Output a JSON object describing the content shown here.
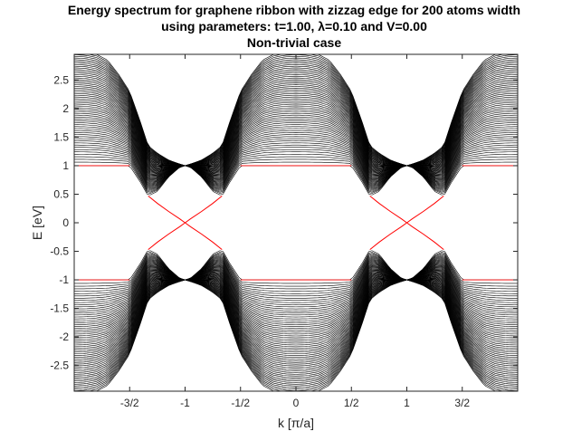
{
  "chart_data": {
    "type": "line",
    "title": [
      "Energy spectrum for graphene ribbon with zizzag edge for 200 atoms width",
      "using parameters: t=1.00, λ=0.10 and V=0.00",
      "Non-trivial case"
    ],
    "xlabel": "k [π/a]",
    "ylabel": "E [eV]",
    "xlim": [
      -2,
      2
    ],
    "ylim": [
      -2.95,
      2.95
    ],
    "xticks": [
      {
        "value": -1.5,
        "label": "-3/2"
      },
      {
        "value": -1,
        "label": "-1"
      },
      {
        "value": -0.5,
        "label": "-1/2"
      },
      {
        "value": 0,
        "label": "0"
      },
      {
        "value": 0.5,
        "label": "1/2"
      },
      {
        "value": 1,
        "label": "1"
      },
      {
        "value": 1.5,
        "label": "3/2"
      }
    ],
    "yticks": [
      {
        "value": 2.5,
        "label": "2.5"
      },
      {
        "value": 2,
        "label": "2"
      },
      {
        "value": 1.5,
        "label": "1.5"
      },
      {
        "value": 1,
        "label": "1"
      },
      {
        "value": 0.5,
        "label": "0.5"
      },
      {
        "value": 0,
        "label": "0"
      },
      {
        "value": -0.5,
        "label": "-0.5"
      },
      {
        "value": -1,
        "label": "-1"
      },
      {
        "value": -1.5,
        "label": "-1.5"
      },
      {
        "value": -2,
        "label": "-2"
      },
      {
        "value": -2.5,
        "label": "-2.5"
      }
    ],
    "grid": false,
    "parameters": {
      "t": 1.0,
      "lambda": 0.1,
      "V": 0.0,
      "width_atoms": 200
    },
    "bulk_band_color": "#000000",
    "edge_state_color": "#ff0000",
    "description": "Bulk bands (black) span |E| from a gap edge of about 0.47 eV near k=±2/3 and ±4/3 up to 3 eV at k=0 and ±2; band touchings at E=±1 at k=±1. Red edge states cross the gap at E=0 near k=±1.",
    "series": [
      {
        "x": [
          -2,
          -1.9,
          -1.8,
          -1.7,
          -1.6,
          -1.5,
          -1.4,
          -1.333,
          -1.25,
          -1.15,
          -1.05,
          -1,
          -0.95,
          -0.85,
          -0.75,
          -0.667,
          -0.6,
          -0.5,
          -0.4,
          -0.3,
          -0.2,
          -0.1,
          0,
          0.1,
          0.2,
          0.3,
          0.4,
          0.5,
          0.6,
          0.667,
          0.75,
          0.85,
          0.95,
          1,
          1.05,
          1.15,
          1.25,
          1.333,
          1.4,
          1.5,
          1.6,
          1.7,
          1.8,
          1.9,
          2
        ],
        "upper_band_max": [
          3,
          2.99,
          2.95,
          2.85,
          2.6,
          2.3,
          1.75,
          1.35,
          1.22,
          1.1,
          1.03,
          1,
          1.03,
          1.1,
          1.22,
          1.35,
          1.75,
          2.3,
          2.6,
          2.85,
          2.95,
          2.99,
          3,
          2.99,
          2.95,
          2.85,
          2.6,
          2.3,
          1.75,
          1.35,
          1.22,
          1.1,
          1.03,
          1,
          1.03,
          1.1,
          1.22,
          1.35,
          1.75,
          2.3,
          2.6,
          2.85,
          2.95,
          2.99,
          3
        ],
        "upper_band_min": [
          1,
          1,
          1,
          1,
          1,
          1,
          0.7,
          0.47,
          0.55,
          0.8,
          0.97,
          1,
          0.97,
          0.8,
          0.55,
          0.47,
          0.7,
          1,
          1,
          1,
          1,
          1,
          1,
          1,
          1,
          1,
          1,
          1,
          0.7,
          0.47,
          0.55,
          0.8,
          0.97,
          1,
          0.97,
          0.8,
          0.55,
          0.47,
          0.7,
          1,
          1,
          1,
          1,
          1,
          1
        ]
      },
      {
        "name": "edge states",
        "x": [
          -1.333,
          -1.25,
          -1.15,
          -1.05,
          -1,
          -0.95,
          -0.85,
          -0.75,
          -0.667,
          0.667,
          0.75,
          0.85,
          0.95,
          1,
          1.05,
          1.15,
          1.25,
          1.333
        ],
        "branch_a": [
          0.47,
          0.34,
          0.2,
          0.07,
          0,
          -0.07,
          -0.2,
          -0.34,
          -0.47,
          0.47,
          0.34,
          0.2,
          0.07,
          0,
          -0.07,
          -0.2,
          -0.34,
          -0.47
        ],
        "branch_b": [
          -0.47,
          -0.34,
          -0.2,
          -0.07,
          0,
          0.07,
          0.2,
          0.34,
          0.47,
          -0.47,
          -0.34,
          -0.2,
          -0.07,
          0,
          0.07,
          0.2,
          0.34,
          0.47
        ]
      }
    ]
  }
}
